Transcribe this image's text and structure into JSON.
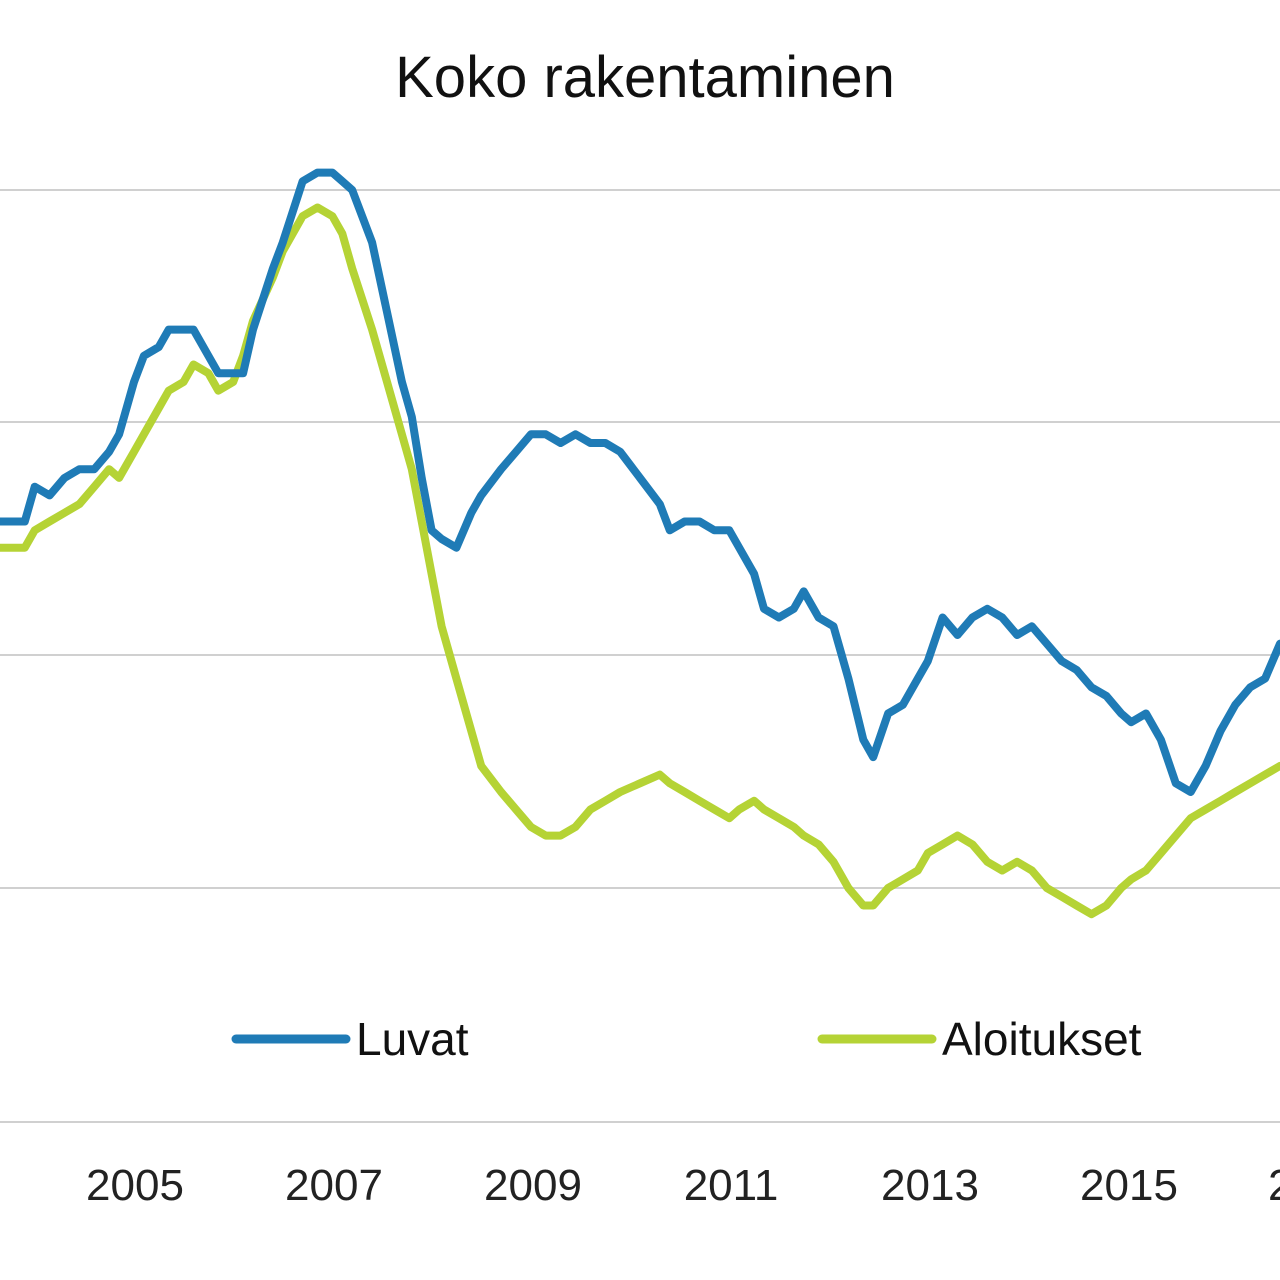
{
  "chart_data": {
    "type": "line",
    "title": "Koko rakentaminen",
    "xlabel": "",
    "ylabel": "",
    "x_ticks": [
      "2005",
      "2007",
      "2009",
      "2011",
      "2013",
      "2015",
      "2"
    ],
    "x_range": [
      2003.65,
      2016.55
    ],
    "y_range": [
      0,
      4
    ],
    "grid": true,
    "legend_position": "bottom",
    "series": [
      {
        "name": "Luvat",
        "color": "#1f7bb6",
        "x": [
          2003.65,
          2003.9,
          2004.0,
          2004.15,
          2004.3,
          2004.45,
          2004.6,
          2004.75,
          2004.85,
          2005.0,
          2005.1,
          2005.25,
          2005.35,
          2005.5,
          2005.6,
          2005.75,
          2005.85,
          2006.0,
          2006.1,
          2006.2,
          2006.4,
          2006.5,
          2006.7,
          2006.85,
          2007.0,
          2007.1,
          2007.2,
          2007.4,
          2007.55,
          2007.7,
          2007.8,
          2007.9,
          2008.0,
          2008.1,
          2008.25,
          2008.4,
          2008.5,
          2008.7,
          2008.85,
          2009.0,
          2009.15,
          2009.3,
          2009.45,
          2009.6,
          2009.75,
          2009.9,
          2010.1,
          2010.3,
          2010.4,
          2010.55,
          2010.7,
          2010.85,
          2011.0,
          2011.1,
          2011.25,
          2011.35,
          2011.5,
          2011.65,
          2011.75,
          2011.9,
          2012.05,
          2012.2,
          2012.35,
          2012.45,
          2012.6,
          2012.75,
          2012.9,
          2013.0,
          2013.15,
          2013.3,
          2013.45,
          2013.6,
          2013.75,
          2013.9,
          2014.05,
          2014.2,
          2014.35,
          2014.5,
          2014.65,
          2014.8,
          2014.95,
          2015.05,
          2015.2,
          2015.35,
          2015.5,
          2015.65,
          2015.8,
          2015.95,
          2016.1,
          2016.25,
          2016.4,
          2016.55
        ],
        "y": [
          2.1,
          2.1,
          2.3,
          2.25,
          2.35,
          2.4,
          2.4,
          2.5,
          2.6,
          2.9,
          3.05,
          3.1,
          3.2,
          3.2,
          3.2,
          3.05,
          2.95,
          2.95,
          2.95,
          3.2,
          3.55,
          3.7,
          4.05,
          4.1,
          4.1,
          4.05,
          4.0,
          3.7,
          3.3,
          2.9,
          2.7,
          2.35,
          2.05,
          2.0,
          1.95,
          2.15,
          2.25,
          2.4,
          2.5,
          2.6,
          2.6,
          2.55,
          2.6,
          2.55,
          2.55,
          2.5,
          2.35,
          2.2,
          2.05,
          2.1,
          2.1,
          2.05,
          2.05,
          1.95,
          1.8,
          1.6,
          1.55,
          1.6,
          1.7,
          1.55,
          1.5,
          1.2,
          0.85,
          0.75,
          1.0,
          1.05,
          1.2,
          1.3,
          1.55,
          1.45,
          1.55,
          1.6,
          1.55,
          1.45,
          1.5,
          1.4,
          1.3,
          1.25,
          1.15,
          1.1,
          1.0,
          0.95,
          1.0,
          0.85,
          0.6,
          0.55,
          0.7,
          0.9,
          1.05,
          1.15,
          1.2,
          1.4
        ]
      },
      {
        "name": "Aloitukset",
        "color": "#b5d335",
        "x": [
          2003.65,
          2003.9,
          2004.0,
          2004.15,
          2004.3,
          2004.45,
          2004.6,
          2004.75,
          2004.85,
          2005.0,
          2005.1,
          2005.25,
          2005.35,
          2005.5,
          2005.6,
          2005.75,
          2005.85,
          2006.0,
          2006.1,
          2006.2,
          2006.4,
          2006.5,
          2006.7,
          2006.85,
          2007.0,
          2007.1,
          2007.2,
          2007.4,
          2007.55,
          2007.7,
          2007.8,
          2007.9,
          2008.0,
          2008.1,
          2008.25,
          2008.4,
          2008.5,
          2008.7,
          2008.85,
          2009.0,
          2009.15,
          2009.3,
          2009.45,
          2009.6,
          2009.75,
          2009.9,
          2010.1,
          2010.3,
          2010.4,
          2010.55,
          2010.7,
          2010.85,
          2011.0,
          2011.1,
          2011.25,
          2011.35,
          2011.5,
          2011.65,
          2011.75,
          2011.9,
          2012.05,
          2012.2,
          2012.35,
          2012.45,
          2012.6,
          2012.75,
          2012.9,
          2013.0,
          2013.15,
          2013.3,
          2013.45,
          2013.6,
          2013.75,
          2013.9,
          2014.05,
          2014.2,
          2014.35,
          2014.5,
          2014.65,
          2014.8,
          2014.95,
          2015.05,
          2015.2,
          2015.35,
          2015.5,
          2015.65,
          2015.8,
          2015.95,
          2016.1,
          2016.25,
          2016.4,
          2016.55
        ],
        "y": [
          1.95,
          1.95,
          2.05,
          2.1,
          2.15,
          2.2,
          2.3,
          2.4,
          2.35,
          2.5,
          2.6,
          2.75,
          2.85,
          2.9,
          3.0,
          2.95,
          2.85,
          2.9,
          3.05,
          3.25,
          3.5,
          3.65,
          3.85,
          3.9,
          3.85,
          3.75,
          3.55,
          3.2,
          2.9,
          2.6,
          2.4,
          2.1,
          1.8,
          1.5,
          1.2,
          0.9,
          0.7,
          0.55,
          0.45,
          0.35,
          0.3,
          0.3,
          0.35,
          0.45,
          0.5,
          0.55,
          0.6,
          0.65,
          0.6,
          0.55,
          0.5,
          0.45,
          0.4,
          0.45,
          0.5,
          0.45,
          0.4,
          0.35,
          0.3,
          0.25,
          0.15,
          0.0,
          -0.1,
          -0.1,
          0.0,
          0.05,
          0.1,
          0.2,
          0.25,
          0.3,
          0.25,
          0.15,
          0.1,
          0.15,
          0.1,
          0.0,
          -0.05,
          -0.1,
          -0.15,
          -0.1,
          0.0,
          0.05,
          0.1,
          0.2,
          0.3,
          0.4,
          0.45,
          0.5,
          0.55,
          0.6,
          0.65,
          0.7
        ]
      }
    ]
  }
}
